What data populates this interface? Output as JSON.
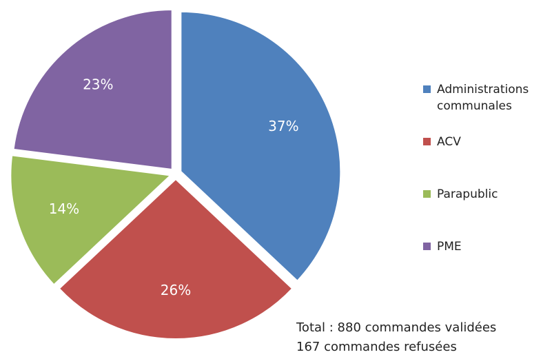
{
  "chart_data": {
    "type": "pie",
    "categories": [
      "Administrations communales",
      "ACV",
      "Parapublic",
      "PME"
    ],
    "values": [
      37,
      26,
      14,
      23
    ],
    "value_labels": [
      "37%",
      "26%",
      "14%",
      "23%"
    ],
    "colors": [
      "#4f81bd",
      "#c0504d",
      "#9bbb59",
      "#8064a2"
    ],
    "legend": "right",
    "annotations": [
      "Total : 880 commandes validées",
      "167 commandes refusées"
    ]
  }
}
